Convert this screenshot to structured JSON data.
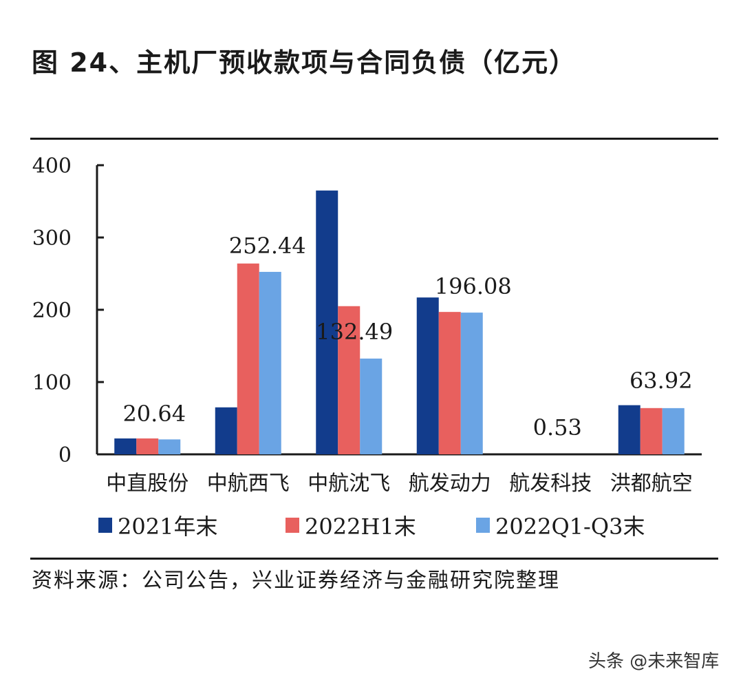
{
  "title": "图 24、主机厂预收款项与合同负债（亿元）",
  "source": "资料来源：公司公告，兴业证券经济与金融研究院整理",
  "watermark": "头条 @未来智库",
  "colors": {
    "series1": "#123c8c",
    "series2": "#e8605e",
    "series3": "#6aa4e4",
    "axis": "#1a1a1a"
  },
  "chart_data": {
    "type": "bar",
    "title": "图 24、主机厂预收款项与合同负债（亿元）",
    "categories": [
      "中直股份",
      "中航西飞",
      "中航沈飞",
      "航发动力",
      "航发科技",
      "洪都航空"
    ],
    "series": [
      {
        "name": "2021年末",
        "values": [
          22,
          65,
          365,
          217,
          0.5,
          68
        ]
      },
      {
        "name": "2022H1末",
        "values": [
          22,
          264,
          205,
          197,
          0.5,
          64
        ]
      },
      {
        "name": "2022Q1-Q3末",
        "values": [
          20.64,
          252.44,
          132.49,
          196.08,
          0.53,
          63.92
        ]
      }
    ],
    "data_labels": [
      "20.64",
      "252.44",
      "132.49",
      "196.08",
      "0.53",
      "63.92"
    ],
    "ylim": [
      0,
      400
    ],
    "yticks": [
      0,
      100,
      200,
      300,
      400
    ],
    "xlabel": "",
    "ylabel": "",
    "legend": "bottom",
    "grid": false
  }
}
